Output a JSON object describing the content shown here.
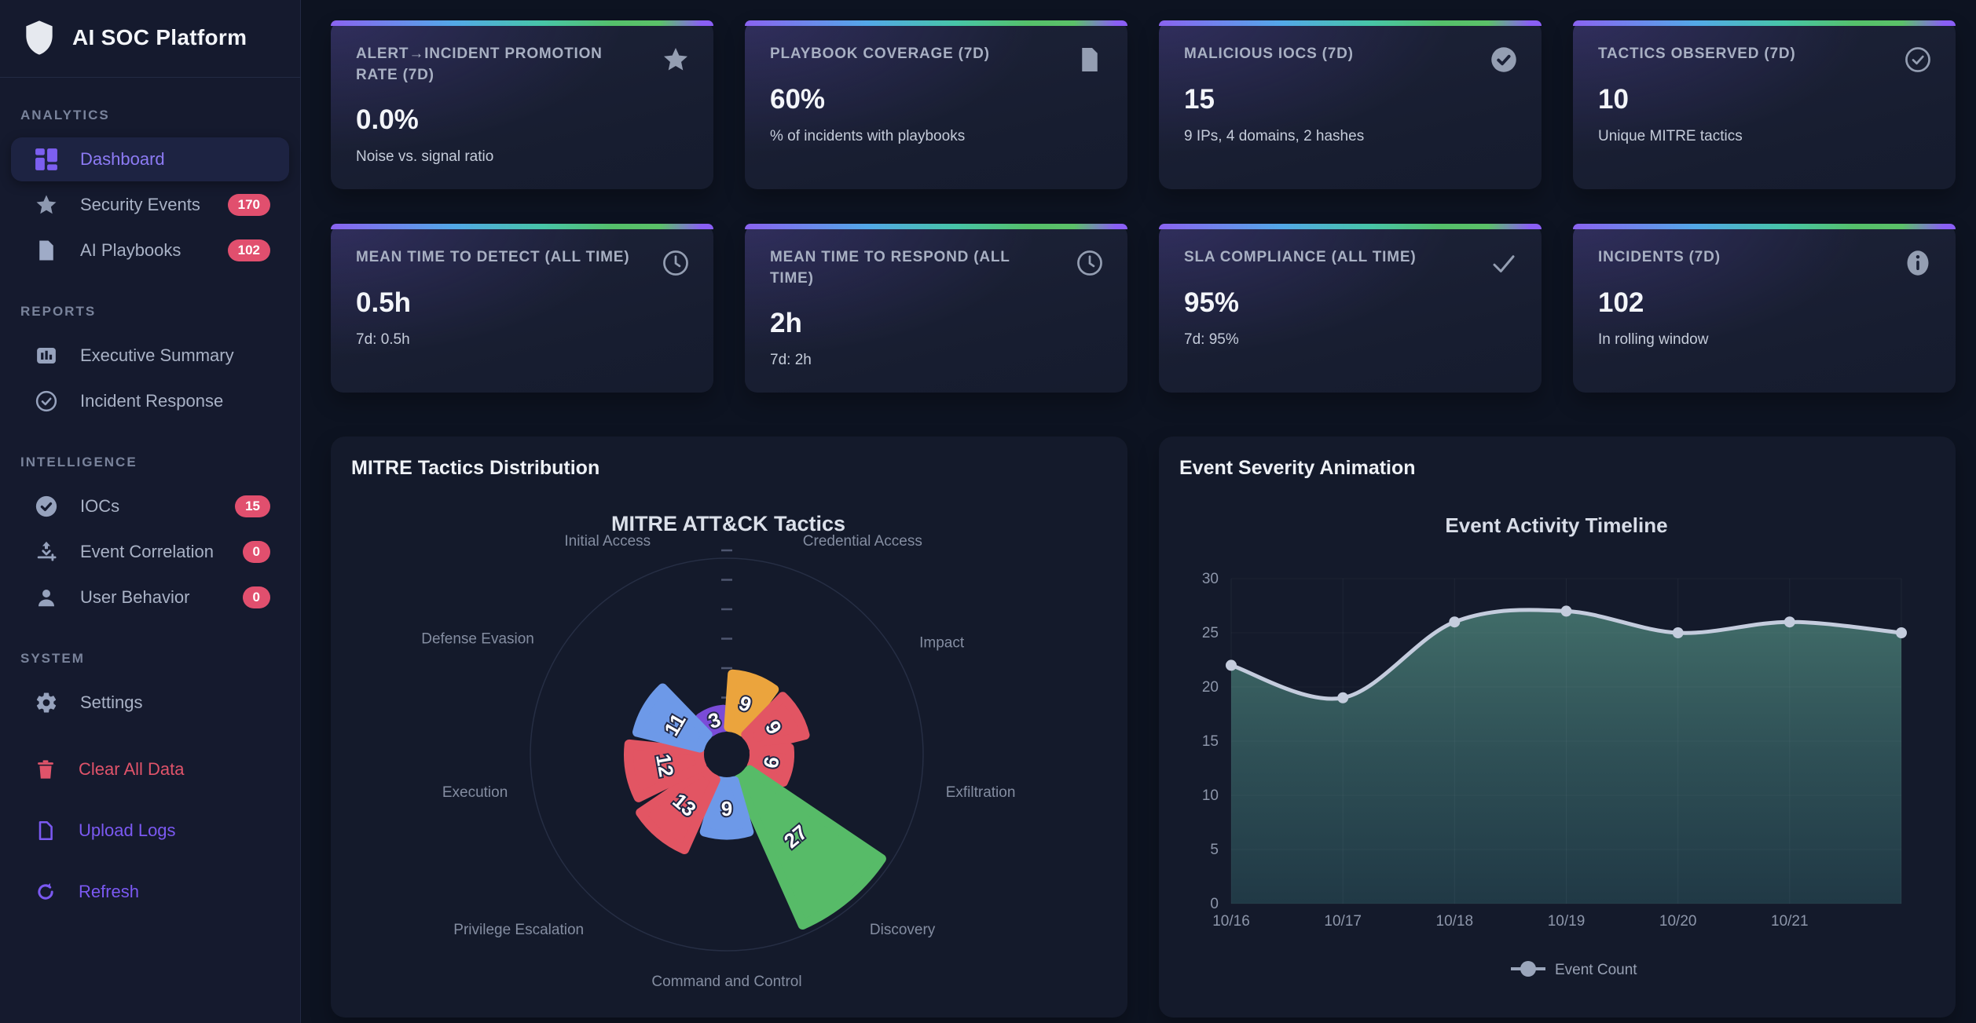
{
  "app": {
    "title": "AI SOC Platform"
  },
  "accents": {
    "primary_purple": "#7b59f2",
    "badge_red": "#e14f6e",
    "danger_red": "#e0536a",
    "card_top_gradient": [
      "#8a63f0",
      "#53a8e8",
      "#47c5a8",
      "#55c06a",
      "#8a5ff5"
    ],
    "icon_gray": "#949eb2"
  },
  "sidebar": {
    "sections": [
      {
        "label": "ANALYTICS",
        "items": [
          {
            "label": "Dashboard",
            "icon": "dashboard-icon",
            "active": true
          },
          {
            "label": "Security Events",
            "icon": "star-icon",
            "badge": "170"
          },
          {
            "label": "AI Playbooks",
            "icon": "document-icon",
            "badge": "102"
          }
        ]
      },
      {
        "label": "REPORTS",
        "items": [
          {
            "label": "Executive Summary",
            "icon": "bar-chart-icon"
          },
          {
            "label": "Incident Response",
            "icon": "check-circle-outline-icon"
          }
        ]
      },
      {
        "label": "INTELLIGENCE",
        "items": [
          {
            "label": "IOCs",
            "icon": "check-circle-filled-icon",
            "badge": "15"
          },
          {
            "label": "Event Correlation",
            "icon": "correlation-icon",
            "badge": "0"
          },
          {
            "label": "User Behavior",
            "icon": "user-icon",
            "badge": "0"
          }
        ]
      },
      {
        "label": "SYSTEM",
        "items": [
          {
            "label": "Settings",
            "icon": "gear-icon"
          }
        ]
      }
    ],
    "actions": [
      {
        "label": "Clear All Data",
        "icon": "trash-icon",
        "style": "danger"
      },
      {
        "label": "Upload Logs",
        "icon": "file-icon",
        "style": "accent"
      },
      {
        "label": "Refresh",
        "icon": "refresh-icon",
        "style": "accent"
      }
    ]
  },
  "stat_cards": [
    {
      "title": "ALERT→INCIDENT PROMOTION RATE (7D)",
      "value": "0.0%",
      "subtitle": "Noise vs. signal ratio",
      "icon": "star-icon"
    },
    {
      "title": "PLAYBOOK COVERAGE (7D)",
      "value": "60%",
      "subtitle": "% of incidents with playbooks",
      "icon": "document-icon"
    },
    {
      "title": "MALICIOUS IOCS (7D)",
      "value": "15",
      "subtitle": "9 IPs, 4 domains, 2 hashes",
      "icon": "check-circle-filled-icon"
    },
    {
      "title": "TACTICS OBSERVED (7D)",
      "value": "10",
      "subtitle": "Unique MITRE tactics",
      "icon": "check-circle-outline-icon"
    },
    {
      "title": "MEAN TIME TO DETECT (ALL TIME)",
      "value": "0.5h",
      "subtitle": "7d: 0.5h",
      "icon": "clock-icon"
    },
    {
      "title": "MEAN TIME TO RESPOND (ALL TIME)",
      "value": "2h",
      "subtitle": "7d: 2h",
      "icon": "clock-icon"
    },
    {
      "title": "SLA COMPLIANCE (ALL TIME)",
      "value": "95%",
      "subtitle": "7d: 95%",
      "icon": "check-icon"
    },
    {
      "title": "INCIDENTS (7D)",
      "value": "102",
      "subtitle": "In rolling window",
      "icon": "info-icon"
    }
  ],
  "chart_data": [
    {
      "type": "bar",
      "subtype": "polar-rose",
      "panel_title": "MITRE Tactics Distribution",
      "title": "MITRE ATT&CK Tactics",
      "categories": [
        "Initial Access",
        "Credential Access",
        "Impact",
        "Exfiltration",
        "Discovery",
        "Command and Control",
        "Privilege Escalation",
        "Execution",
        "Defense Evasion"
      ],
      "values": [
        3,
        9,
        9,
        6,
        27,
        9,
        13,
        12,
        11
      ],
      "colors": [
        "#7a4bd8",
        "#eba43d",
        "#e25563",
        "#e25563",
        "#57bb68",
        "#6d99e8",
        "#e25563",
        "#e25563",
        "#6d99e8"
      ],
      "radial_ticks": [
        5,
        10,
        15,
        20,
        25,
        30
      ],
      "rmax": 30,
      "start_angle_deg": 110,
      "label_color": "#848da1",
      "grid": "outer-ring"
    },
    {
      "type": "line",
      "subtype": "smooth-area",
      "panel_title": "Event Severity Animation",
      "title": "Event Activity Timeline",
      "x": [
        "10/16",
        "10/17",
        "10/18",
        "10/19",
        "10/20",
        "10/21",
        ""
      ],
      "series": [
        {
          "name": "Event Count",
          "values": [
            22,
            19,
            26,
            27,
            25,
            26,
            25
          ]
        }
      ],
      "ylim": [
        0,
        30
      ],
      "yticks": [
        0,
        5,
        10,
        15,
        20,
        25,
        30
      ],
      "line_color": "#c4ccdd",
      "marker_color": "#c4ccdd",
      "area_top_color": "#477770",
      "area_bottom_color": "#223d49",
      "axis_label_color": "#8d96aa",
      "grid": "on",
      "legend_position": "bottom"
    }
  ]
}
